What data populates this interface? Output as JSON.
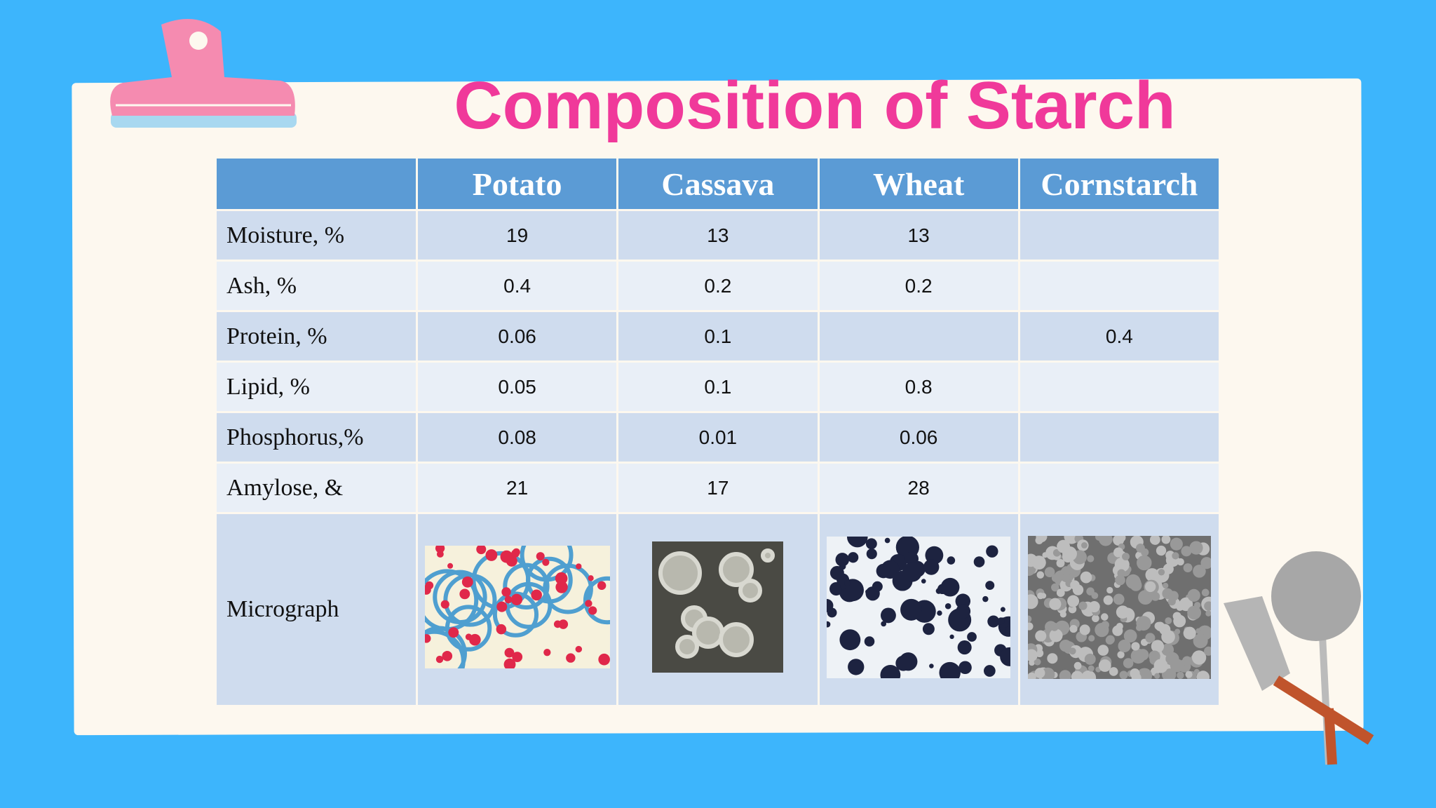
{
  "title": "Composition of Starch",
  "table": {
    "header": [
      null,
      "Potato",
      "Cassava",
      "Wheat",
      "Cornstarch"
    ],
    "rows": [
      [
        "Moisture, %",
        19,
        13,
        13,
        null
      ],
      [
        "Ash, %",
        0.4,
        0.2,
        0.2,
        null
      ],
      [
        "Protein, %",
        0.06,
        0.1,
        null,
        0.4
      ],
      [
        "Lipid, %",
        0.05,
        0.1,
        0.8,
        null
      ],
      [
        "Phosphorus,%",
        0.08,
        0.01,
        0.06,
        null
      ],
      [
        "Amylose, &",
        21,
        17,
        28,
        null
      ]
    ],
    "micrograph_label": "Micrograph"
  }
}
